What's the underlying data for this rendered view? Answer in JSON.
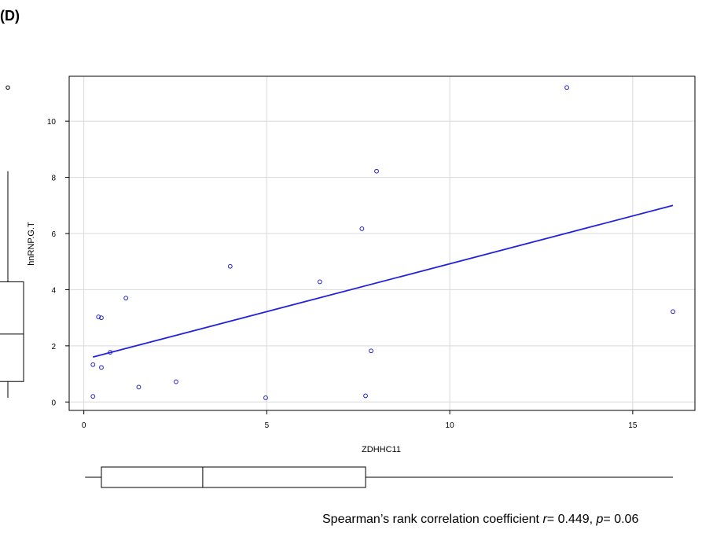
{
  "panel_label": "(D)",
  "caption": {
    "prefix": "Spearman’s rank correlation coefficient ",
    "r_symbol": "r",
    "r_text": "= 0.449, ",
    "p_symbol": "p",
    "p_text": "= 0.06"
  },
  "colors": {
    "points": "#2222cc",
    "fit_line": "#2222dd",
    "grid": "#d9d9d9",
    "frame": "#000000"
  },
  "chart_data": {
    "type": "scatter",
    "title": "",
    "xlabel": "ZDHHC11",
    "ylabel": "hnRNP.G.T",
    "xlim": [
      -0.4,
      16.7
    ],
    "ylim": [
      -0.3,
      11.6
    ],
    "xticks": [
      0,
      5,
      10,
      15
    ],
    "yticks": [
      0,
      2,
      4,
      6,
      8,
      10
    ],
    "grid": true,
    "points": [
      {
        "x": 0.25,
        "y": 0.2
      },
      {
        "x": 0.25,
        "y": 1.33
      },
      {
        "x": 0.4,
        "y": 3.03
      },
      {
        "x": 0.48,
        "y": 3.0
      },
      {
        "x": 0.48,
        "y": 1.23
      },
      {
        "x": 0.72,
        "y": 1.77
      },
      {
        "x": 1.15,
        "y": 3.7
      },
      {
        "x": 1.5,
        "y": 0.53
      },
      {
        "x": 2.52,
        "y": 0.72
      },
      {
        "x": 4.0,
        "y": 4.83
      },
      {
        "x": 4.97,
        "y": 0.15
      },
      {
        "x": 6.45,
        "y": 4.28
      },
      {
        "x": 7.6,
        "y": 6.17
      },
      {
        "x": 7.7,
        "y": 0.22
      },
      {
        "x": 7.85,
        "y": 1.82
      },
      {
        "x": 8.0,
        "y": 8.22
      },
      {
        "x": 13.2,
        "y": 11.2
      },
      {
        "x": 16.1,
        "y": 3.22
      }
    ],
    "fit_line": {
      "x": [
        0.25,
        16.1
      ],
      "y": [
        1.6,
        7.0
      ]
    },
    "x_boxplot": {
      "whisker_low": 0.25,
      "q1": 0.48,
      "median": 3.25,
      "q3": 7.7,
      "whisker_high": 16.1
    },
    "y_boxplot": {
      "whisker_low": 0.15,
      "q1": 0.73,
      "median": 2.42,
      "q3": 4.28,
      "whisker_high": 8.22,
      "outliers": [
        11.2
      ]
    }
  }
}
